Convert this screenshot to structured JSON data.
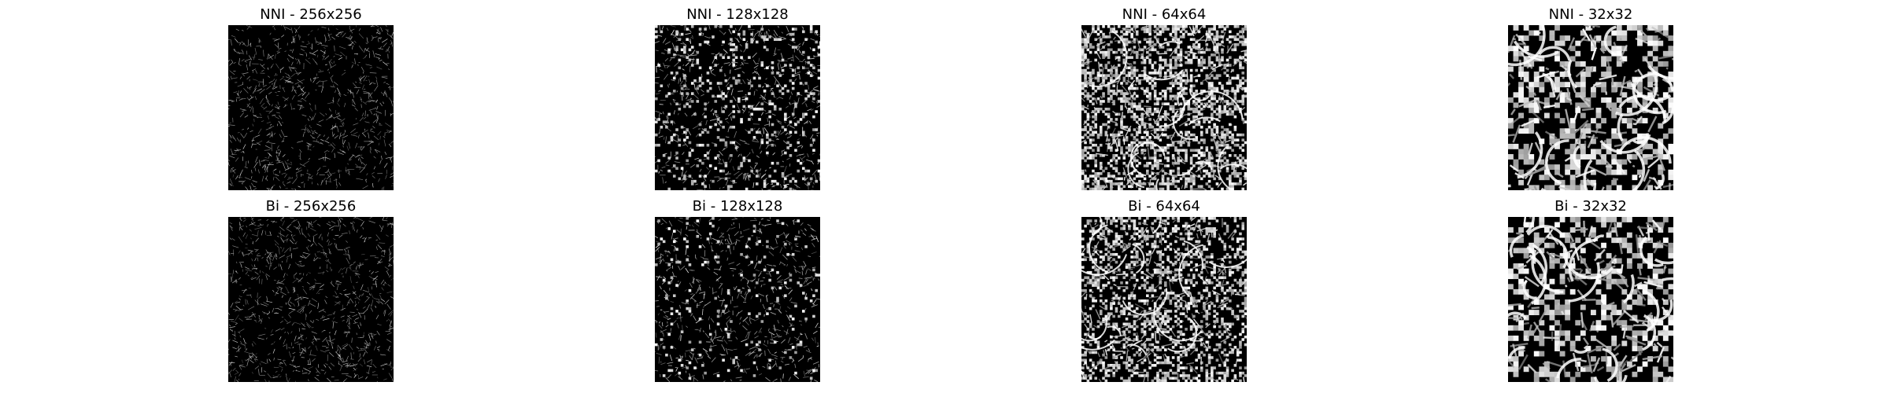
{
  "figure": {
    "panels": [
      {
        "title": "NNI - 256x256",
        "method": "NNI",
        "resolution": 256
      },
      {
        "title": "NNI - 128x128",
        "method": "NNI",
        "resolution": 128
      },
      {
        "title": "NNI - 64x64",
        "method": "NNI",
        "resolution": 64
      },
      {
        "title": "NNI - 32x32",
        "method": "NNI",
        "resolution": 32
      },
      {
        "title": "Bi - 256x256",
        "method": "Bi",
        "resolution": 256
      },
      {
        "title": "Bi - 128x128",
        "method": "Bi",
        "resolution": 128
      },
      {
        "title": "Bi - 64x64",
        "method": "Bi",
        "resolution": 64
      },
      {
        "title": "Bi - 32x32",
        "method": "Bi",
        "resolution": 32
      }
    ],
    "colors": {
      "background": "#ffffff",
      "image_dark": "#000000",
      "image_light": "#ffffff"
    }
  }
}
